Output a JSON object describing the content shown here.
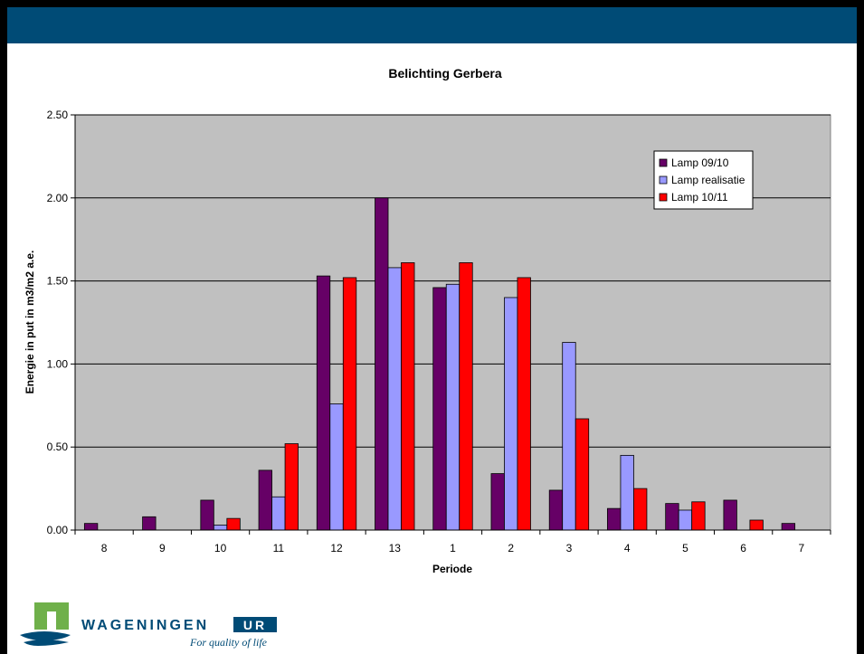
{
  "chart_data": {
    "type": "bar",
    "title": "Belichting Gerbera",
    "xlabel": "Periode",
    "ylabel": "Energie in put in m3/m2 a.e.",
    "ylim": [
      0,
      2.5
    ],
    "yticks": [
      "0.00",
      "0.50",
      "1.00",
      "1.50",
      "2.00",
      "2.50"
    ],
    "ytick_values": [
      0,
      0.5,
      1.0,
      1.5,
      2.0,
      2.5
    ],
    "categories": [
      "8",
      "9",
      "10",
      "11",
      "12",
      "13",
      "1",
      "2",
      "3",
      "4",
      "5",
      "6",
      "7"
    ],
    "series": [
      {
        "name": "Lamp 09/10",
        "color": "#660066",
        "values": [
          0.04,
          0.08,
          0.18,
          0.36,
          1.53,
          2.0,
          1.46,
          0.34,
          0.24,
          0.13,
          0.16,
          0.18,
          0.04
        ]
      },
      {
        "name": "Lamp realisatie",
        "color": "#9999ff",
        "values": [
          0,
          0,
          0.03,
          0.2,
          0.76,
          1.58,
          1.48,
          1.4,
          1.13,
          0.45,
          0.12,
          0,
          0
        ]
      },
      {
        "name": "Lamp 10/11",
        "color": "#ff0000",
        "values": [
          0,
          0,
          0.07,
          0.52,
          1.52,
          1.61,
          1.61,
          1.52,
          0.67,
          0.25,
          0.17,
          0.06,
          0
        ]
      }
    ],
    "grid": true,
    "legend_position": "top-right",
    "plot_background": "#c0c0c0"
  },
  "logo": {
    "name_left": "WAGENINGEN",
    "name_right": "UR",
    "tagline": "For quality of life",
    "brand_color": "#004b76",
    "green": "#6fb04a"
  }
}
